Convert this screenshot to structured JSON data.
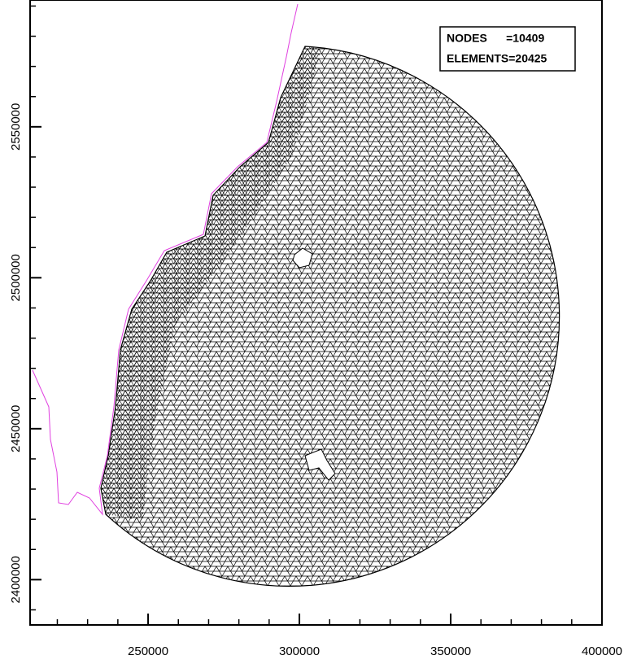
{
  "chart_data": {
    "type": "mesh",
    "annotations": [
      "NODES      =10409",
      "ELEMENTS=20425"
    ],
    "xlim": [
      211000,
      400000
    ],
    "xticks": [
      250000,
      300000,
      350000,
      400000
    ],
    "xminorticks": [
      220000,
      230000,
      240000,
      260000,
      270000,
      280000,
      290000,
      310000,
      320000,
      330000,
      340000,
      360000,
      370000,
      380000,
      390000
    ],
    "ylim": [
      2385000,
      2592000
    ],
    "yticks": [
      2400000,
      2450000,
      2500000,
      2550000
    ],
    "yminorticks": [
      2390000,
      2410000,
      2420000,
      2430000,
      2440000,
      2460000,
      2470000,
      2480000,
      2490000,
      2510000,
      2520000,
      2530000,
      2540000,
      2560000,
      2570000,
      2580000,
      2590000
    ]
  }
}
